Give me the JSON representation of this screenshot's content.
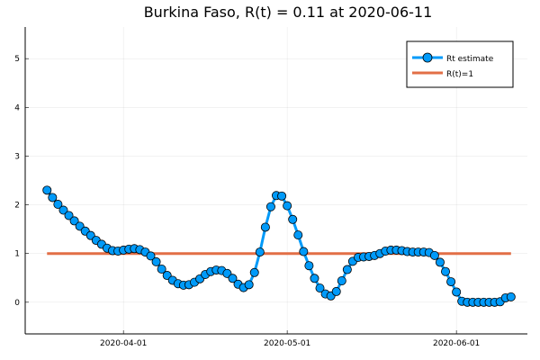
{
  "chart_data": {
    "type": "line",
    "title": "Burkina Faso, R(t) = 0.11 at 2020-06-11",
    "xlabel": "",
    "ylabel": "",
    "x_ticks": [
      "2020-04-01",
      "2020-05-01",
      "2020-06-01"
    ],
    "y_ticks": [
      0,
      1,
      2,
      3,
      4,
      5
    ],
    "xlim": [
      "2020-03-14",
      "2020-06-14"
    ],
    "ylim": [
      -0.65,
      5.65
    ],
    "grid": true,
    "legend_position": "top-right",
    "colors": {
      "rt": "#009af9",
      "ref": "#e26f46"
    },
    "series": [
      {
        "name": "Rt estimate",
        "style": "line-with-markers",
        "dates": [
          "2020-03-18",
          "2020-03-19",
          "2020-03-20",
          "2020-03-21",
          "2020-03-22",
          "2020-03-23",
          "2020-03-24",
          "2020-03-25",
          "2020-03-26",
          "2020-03-27",
          "2020-03-28",
          "2020-03-29",
          "2020-03-30",
          "2020-03-31",
          "2020-04-01",
          "2020-04-02",
          "2020-04-03",
          "2020-04-04",
          "2020-04-05",
          "2020-04-06",
          "2020-04-07",
          "2020-04-08",
          "2020-04-09",
          "2020-04-10",
          "2020-04-11",
          "2020-04-12",
          "2020-04-13",
          "2020-04-14",
          "2020-04-15",
          "2020-04-16",
          "2020-04-17",
          "2020-04-18",
          "2020-04-19",
          "2020-04-20",
          "2020-04-21",
          "2020-04-22",
          "2020-04-23",
          "2020-04-24",
          "2020-04-25",
          "2020-04-26",
          "2020-04-27",
          "2020-04-28",
          "2020-04-29",
          "2020-04-30",
          "2020-05-01",
          "2020-05-02",
          "2020-05-03",
          "2020-05-04",
          "2020-05-05",
          "2020-05-06",
          "2020-05-07",
          "2020-05-08",
          "2020-05-09",
          "2020-05-10",
          "2020-05-11",
          "2020-05-12",
          "2020-05-13",
          "2020-05-14",
          "2020-05-15",
          "2020-05-16",
          "2020-05-17",
          "2020-05-18",
          "2020-05-19",
          "2020-05-20",
          "2020-05-21",
          "2020-05-22",
          "2020-05-23",
          "2020-05-24",
          "2020-05-25",
          "2020-05-26",
          "2020-05-27",
          "2020-05-28",
          "2020-05-29",
          "2020-05-30",
          "2020-05-31",
          "2020-06-01",
          "2020-06-02",
          "2020-06-03",
          "2020-06-04",
          "2020-06-05",
          "2020-06-06",
          "2020-06-07",
          "2020-06-08",
          "2020-06-09",
          "2020-06-10",
          "2020-06-11"
        ],
        "values": [
          2.3,
          2.15,
          2.01,
          1.89,
          1.78,
          1.67,
          1.56,
          1.46,
          1.37,
          1.27,
          1.19,
          1.11,
          1.06,
          1.05,
          1.07,
          1.09,
          1.1,
          1.08,
          1.03,
          0.95,
          0.83,
          0.68,
          0.55,
          0.45,
          0.38,
          0.35,
          0.36,
          0.41,
          0.48,
          0.57,
          0.63,
          0.66,
          0.65,
          0.59,
          0.49,
          0.37,
          0.3,
          0.36,
          0.61,
          1.03,
          1.54,
          1.96,
          2.19,
          2.18,
          1.98,
          1.7,
          1.38,
          1.04,
          0.75,
          0.49,
          0.29,
          0.17,
          0.13,
          0.22,
          0.44,
          0.67,
          0.84,
          0.92,
          0.93,
          0.94,
          0.96,
          1.0,
          1.05,
          1.07,
          1.07,
          1.06,
          1.04,
          1.03,
          1.03,
          1.03,
          1.02,
          0.96,
          0.82,
          0.63,
          0.42,
          0.21,
          0.02,
          0.0,
          0.0,
          0.0,
          0.0,
          0.0,
          0.0,
          0.01,
          0.09,
          0.11
        ]
      },
      {
        "name": "R(t)=1",
        "style": "line",
        "dates": [
          "2020-03-18",
          "2020-06-11"
        ],
        "values": [
          1,
          1
        ]
      }
    ]
  }
}
